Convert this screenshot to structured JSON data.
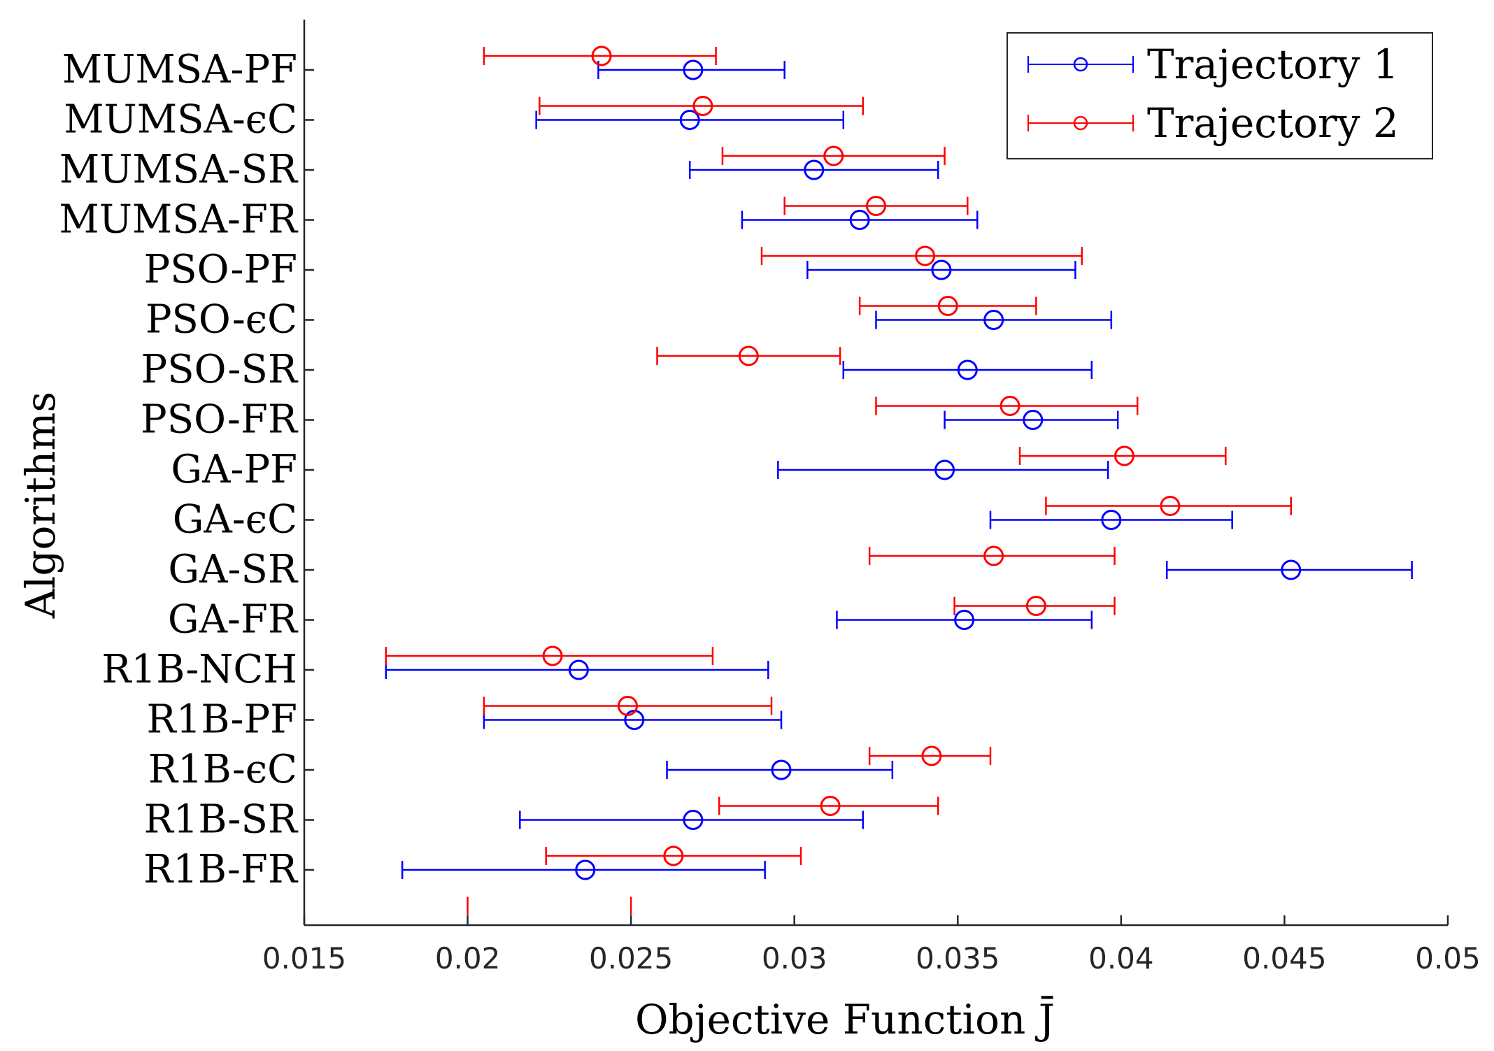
{
  "chart_data": {
    "type": "scatter",
    "subtype": "horizontal error bars",
    "title": "",
    "xlabel": "Objective Function J̄",
    "ylabel": "Algorithms",
    "xlim": [
      0.015,
      0.05
    ],
    "xticks": [
      "0.015",
      "0.02",
      "0.025",
      "0.03",
      "0.035",
      "0.04",
      "0.045",
      "0.05"
    ],
    "xtick_values": [
      0.015,
      0.02,
      0.025,
      0.03,
      0.035,
      0.04,
      0.045,
      0.05
    ],
    "categories": [
      "MUMSA-PF",
      "MUMSA-ϵC",
      "MUMSA-SR",
      "MUMSA-FR",
      "PSO-PF",
      "PSO-ϵC",
      "PSO-SR",
      "PSO-FR",
      "GA-PF",
      "GA-ϵC",
      "GA-SR",
      "GA-FR",
      "R1B-NCH",
      "R1B-PF",
      "R1B-ϵC",
      "R1B-SR",
      "R1B-FR"
    ],
    "legend_position": "top-right",
    "grid": false,
    "series": [
      {
        "name": "Trajectory 1",
        "color": "#0000ff",
        "mean": [
          0.0269,
          0.0268,
          0.0306,
          0.032,
          0.0345,
          0.0361,
          0.0353,
          0.0373,
          0.0346,
          0.0397,
          0.0452,
          0.0352,
          0.0234,
          0.0251,
          0.0296,
          0.0269,
          0.0236
        ],
        "lower": [
          0.024,
          0.0221,
          0.0268,
          0.0284,
          0.0304,
          0.0325,
          0.0315,
          0.0346,
          0.0295,
          0.036,
          0.0414,
          0.0313,
          0.0175,
          0.0205,
          0.0261,
          0.0216,
          0.018
        ],
        "upper": [
          0.0297,
          0.0315,
          0.0344,
          0.0356,
          0.0386,
          0.0397,
          0.0391,
          0.0399,
          0.0396,
          0.0434,
          0.0489,
          0.0391,
          0.0292,
          0.0296,
          0.033,
          0.0321,
          0.0291
        ]
      },
      {
        "name": "Trajectory 2",
        "color": "#ff0000",
        "mean": [
          0.0241,
          0.0272,
          0.0312,
          0.0325,
          0.034,
          0.0347,
          0.0286,
          0.0366,
          0.0401,
          0.0415,
          0.0361,
          0.0374,
          0.0226,
          0.0249,
          0.0342,
          0.0311,
          0.0263
        ],
        "lower": [
          0.0205,
          0.0222,
          0.0278,
          0.0297,
          0.029,
          0.032,
          0.0258,
          0.0325,
          0.0369,
          0.0377,
          0.0323,
          0.0349,
          0.0175,
          0.0205,
          0.0323,
          0.0277,
          0.0224
        ],
        "upper": [
          0.0276,
          0.0321,
          0.0346,
          0.0353,
          0.0388,
          0.0374,
          0.0314,
          0.0405,
          0.0432,
          0.0452,
          0.0398,
          0.0398,
          0.0275,
          0.0293,
          0.036,
          0.0344,
          0.0302
        ]
      }
    ],
    "extra_marks": {
      "series": "Trajectory 2",
      "color": "#ff0000",
      "x": [
        0.02,
        0.025
      ]
    }
  }
}
